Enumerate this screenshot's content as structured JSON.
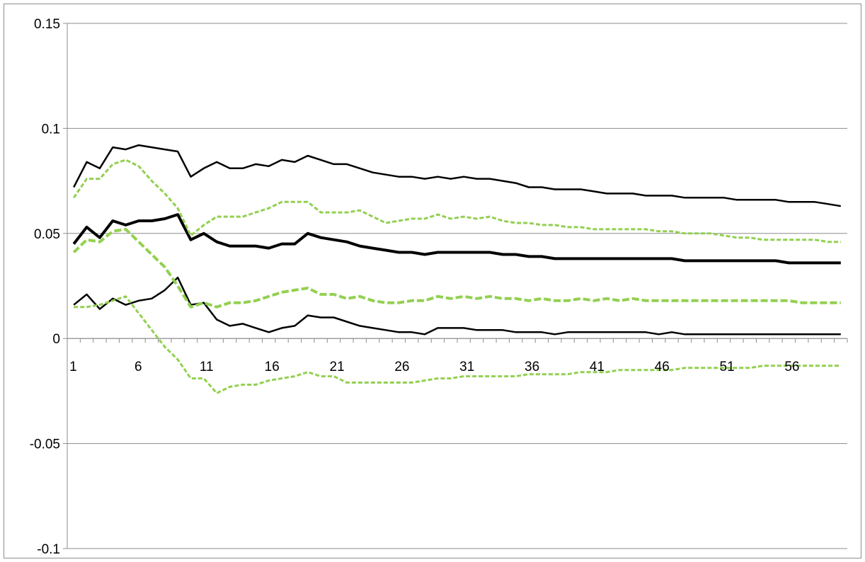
{
  "chart_data": {
    "type": "line",
    "title": "",
    "xlabel": "",
    "ylabel": "",
    "ylim": [
      -0.1,
      0.15
    ],
    "yticks": [
      -0.1,
      -0.05,
      0,
      0.05,
      0.1,
      0.15
    ],
    "ytick_labels": [
      "-0.1",
      "-0.05",
      "0",
      "0.05",
      "0.1",
      "0.15"
    ],
    "x": [
      1,
      2,
      3,
      4,
      5,
      6,
      7,
      8,
      9,
      10,
      11,
      12,
      13,
      14,
      15,
      16,
      17,
      18,
      19,
      20,
      21,
      22,
      23,
      24,
      25,
      26,
      27,
      28,
      29,
      30,
      31,
      32,
      33,
      34,
      35,
      36,
      37,
      38,
      39,
      40,
      41,
      42,
      43,
      44,
      45,
      46,
      47,
      48,
      49,
      50,
      51,
      52,
      53,
      54,
      55,
      56,
      57,
      58,
      59,
      60
    ],
    "xtick_labels": [
      "1",
      "6",
      "11",
      "16",
      "21",
      "26",
      "31",
      "36",
      "41",
      "46",
      "51",
      "56"
    ],
    "xtick_values": [
      1,
      6,
      11,
      16,
      21,
      26,
      31,
      36,
      41,
      46,
      51,
      56
    ],
    "grid": "horizontal",
    "legend": "none",
    "series": [
      {
        "style": "solid-thick",
        "color": "#000000",
        "values": [
          0.045,
          0.053,
          0.048,
          0.056,
          0.054,
          0.056,
          0.056,
          0.057,
          0.059,
          0.047,
          0.05,
          0.046,
          0.044,
          0.044,
          0.044,
          0.043,
          0.045,
          0.045,
          0.05,
          0.048,
          0.047,
          0.046,
          0.044,
          0.043,
          0.042,
          0.041,
          0.041,
          0.04,
          0.041,
          0.041,
          0.041,
          0.041,
          0.041,
          0.04,
          0.04,
          0.039,
          0.039,
          0.038,
          0.038,
          0.038,
          0.038,
          0.038,
          0.038,
          0.038,
          0.038,
          0.038,
          0.038,
          0.037,
          0.037,
          0.037,
          0.037,
          0.037,
          0.037,
          0.037,
          0.037,
          0.036,
          0.036,
          0.036,
          0.036,
          0.036
        ]
      },
      {
        "style": "solid",
        "color": "#000000",
        "values": [
          0.072,
          0.084,
          0.081,
          0.091,
          0.09,
          0.092,
          0.091,
          0.09,
          0.089,
          0.077,
          0.081,
          0.084,
          0.081,
          0.081,
          0.083,
          0.082,
          0.085,
          0.084,
          0.087,
          0.085,
          0.083,
          0.083,
          0.081,
          0.079,
          0.078,
          0.077,
          0.077,
          0.076,
          0.077,
          0.076,
          0.077,
          0.076,
          0.076,
          0.075,
          0.074,
          0.072,
          0.072,
          0.071,
          0.071,
          0.071,
          0.07,
          0.069,
          0.069,
          0.069,
          0.068,
          0.068,
          0.068,
          0.067,
          0.067,
          0.067,
          0.067,
          0.066,
          0.066,
          0.066,
          0.066,
          0.065,
          0.065,
          0.065,
          0.064,
          0.063
        ]
      },
      {
        "style": "solid",
        "color": "#000000",
        "values": [
          0.016,
          0.021,
          0.014,
          0.019,
          0.016,
          0.018,
          0.019,
          0.023,
          0.029,
          0.016,
          0.017,
          0.009,
          0.006,
          0.007,
          0.005,
          0.003,
          0.005,
          0.006,
          0.011,
          0.01,
          0.01,
          0.008,
          0.006,
          0.005,
          0.004,
          0.003,
          0.003,
          0.002,
          0.005,
          0.005,
          0.005,
          0.004,
          0.004,
          0.004,
          0.003,
          0.003,
          0.003,
          0.002,
          0.003,
          0.003,
          0.003,
          0.003,
          0.003,
          0.003,
          0.003,
          0.002,
          0.003,
          0.002,
          0.002,
          0.002,
          0.002,
          0.002,
          0.002,
          0.002,
          0.002,
          0.002,
          0.002,
          0.002,
          0.002,
          0.002
        ]
      },
      {
        "style": "dashed-thick",
        "color": "#92d050",
        "values": [
          0.041,
          0.047,
          0.046,
          0.051,
          0.052,
          0.046,
          0.04,
          0.034,
          0.025,
          0.015,
          0.017,
          0.015,
          0.017,
          0.017,
          0.018,
          0.02,
          0.022,
          0.023,
          0.024,
          0.021,
          0.021,
          0.019,
          0.02,
          0.018,
          0.017,
          0.017,
          0.018,
          0.018,
          0.02,
          0.019,
          0.02,
          0.019,
          0.02,
          0.019,
          0.019,
          0.018,
          0.019,
          0.018,
          0.018,
          0.019,
          0.018,
          0.019,
          0.018,
          0.019,
          0.018,
          0.018,
          0.018,
          0.018,
          0.018,
          0.018,
          0.018,
          0.018,
          0.018,
          0.018,
          0.018,
          0.018,
          0.017,
          0.017,
          0.017,
          0.017
        ]
      },
      {
        "style": "dashed",
        "color": "#92d050",
        "values": [
          0.067,
          0.076,
          0.076,
          0.083,
          0.085,
          0.082,
          0.075,
          0.069,
          0.062,
          0.049,
          0.054,
          0.058,
          0.058,
          0.058,
          0.06,
          0.062,
          0.065,
          0.065,
          0.065,
          0.06,
          0.06,
          0.06,
          0.061,
          0.058,
          0.055,
          0.056,
          0.057,
          0.057,
          0.059,
          0.057,
          0.058,
          0.057,
          0.058,
          0.056,
          0.055,
          0.055,
          0.054,
          0.054,
          0.053,
          0.053,
          0.052,
          0.052,
          0.052,
          0.052,
          0.052,
          0.051,
          0.051,
          0.05,
          0.05,
          0.05,
          0.049,
          0.048,
          0.048,
          0.047,
          0.047,
          0.047,
          0.047,
          0.047,
          0.046,
          0.046
        ]
      },
      {
        "style": "dashed",
        "color": "#92d050",
        "values": [
          0.015,
          0.015,
          0.016,
          0.018,
          0.02,
          0.012,
          0.004,
          -0.004,
          -0.01,
          -0.019,
          -0.019,
          -0.026,
          -0.023,
          -0.022,
          -0.022,
          -0.02,
          -0.019,
          -0.018,
          -0.016,
          -0.018,
          -0.018,
          -0.021,
          -0.021,
          -0.021,
          -0.021,
          -0.021,
          -0.021,
          -0.02,
          -0.019,
          -0.019,
          -0.018,
          -0.018,
          -0.018,
          -0.018,
          -0.018,
          -0.017,
          -0.017,
          -0.017,
          -0.017,
          -0.016,
          -0.016,
          -0.016,
          -0.015,
          -0.015,
          -0.015,
          -0.015,
          -0.015,
          -0.014,
          -0.014,
          -0.014,
          -0.014,
          -0.014,
          -0.014,
          -0.013,
          -0.013,
          -0.013,
          -0.013,
          -0.013,
          -0.013,
          -0.013
        ]
      }
    ]
  }
}
